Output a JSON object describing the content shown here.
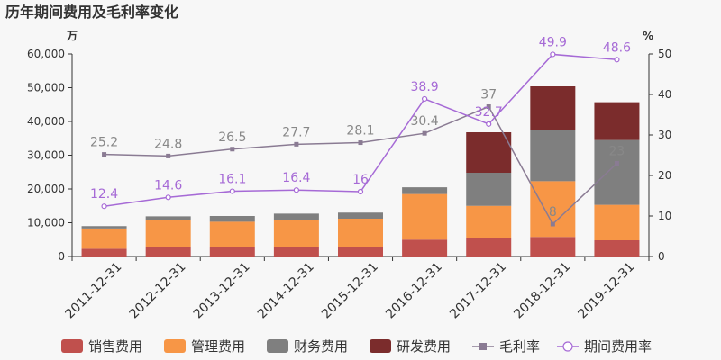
{
  "chart_data": {
    "type": "bar",
    "title": "历年期间费用及毛利率变化",
    "left_unit": "万",
    "right_unit": "%",
    "categories": [
      "2011-12-31",
      "2012-12-31",
      "2013-12-31",
      "2014-12-31",
      "2015-12-31",
      "2016-12-31",
      "2017-12-31",
      "2018-12-31",
      "2019-12-31"
    ],
    "y_left_ticks": [
      "0",
      "10,000",
      "20,000",
      "30,000",
      "40,000",
      "50,000",
      "60,000"
    ],
    "y_right_ticks": [
      "0",
      "10",
      "20",
      "30",
      "40",
      "50"
    ],
    "ylim_left": [
      0,
      60000
    ],
    "ylim_right": [
      0,
      50
    ],
    "stacked_series": [
      {
        "name": "销售费用",
        "color": "#c0504d",
        "values": [
          2300,
          2900,
          2800,
          2800,
          2800,
          5000,
          5500,
          5800,
          4800
        ]
      },
      {
        "name": "管理费用",
        "color": "#f79646",
        "values": [
          6000,
          7800,
          7500,
          7900,
          8400,
          13500,
          9500,
          16500,
          10500
        ]
      },
      {
        "name": "财务费用",
        "color": "#7f7f7f",
        "values": [
          700,
          1200,
          1700,
          2000,
          1800,
          2000,
          9800,
          15300,
          19200
        ]
      },
      {
        "name": "研发费用",
        "color": "#7b2c2c",
        "values": [
          0,
          0,
          0,
          0,
          0,
          0,
          12000,
          12800,
          11200
        ]
      }
    ],
    "line_series": [
      {
        "name": "毛利率",
        "color": "#8a7b93",
        "values": [
          25.2,
          24.8,
          26.5,
          27.7,
          28.1,
          30.4,
          37,
          8,
          23
        ],
        "labels": [
          "25.2",
          "24.8",
          "26.5",
          "27.7",
          "28.1",
          "30.4",
          "37",
          "8",
          "23"
        ]
      },
      {
        "name": "期间费用率",
        "color": "#a66ad6",
        "values": [
          12.4,
          14.6,
          16.1,
          16.4,
          16,
          38.9,
          32.7,
          49.9,
          48.6
        ],
        "labels": [
          "12.4",
          "14.6",
          "16.1",
          "16.4",
          "16",
          "38.9",
          "32.7",
          "49.9",
          "48.6"
        ]
      }
    ],
    "legend_position": "bottom",
    "grid": false
  }
}
